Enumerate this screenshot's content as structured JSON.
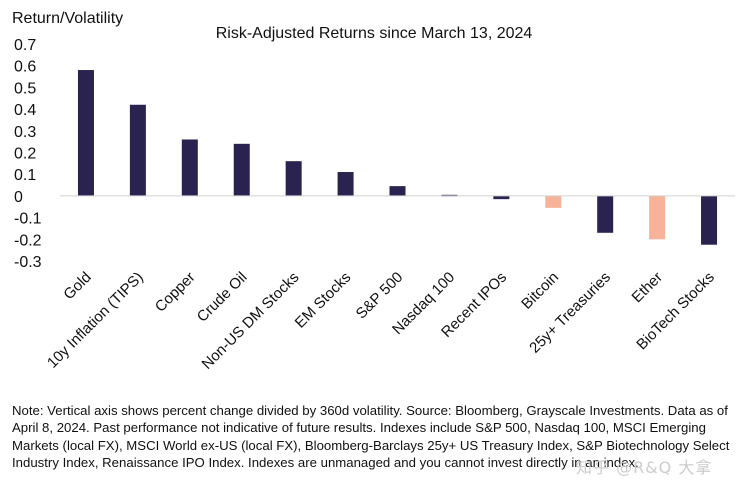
{
  "chart_data": {
    "type": "bar",
    "title": "Risk-Adjusted Returns since March 13, 2024",
    "ylabel": "Return/Volatility",
    "xlabel": "",
    "ylim": [
      -0.3,
      0.7
    ],
    "yticks": [
      0.7,
      0.6,
      0.5,
      0.4,
      0.3,
      0.2,
      0.1,
      0,
      -0.1,
      -0.2,
      -0.3
    ],
    "ytick_labels": [
      "0.7",
      "0.6",
      "0.5",
      "0.4",
      "0.3",
      "0.2",
      "0.1",
      "0",
      "-0.1",
      "-0.2",
      "-0.3"
    ],
    "grid": false,
    "legend": "none",
    "categories": [
      "Gold",
      "10y Inflation (TIPS)",
      "Copper",
      "Crude Oil",
      "Non-US DM Stocks",
      "EM Stocks",
      "S&P 500",
      "Nasdaq 100",
      "Recent IPOs",
      "Bitcoin",
      "25y+ Treasuries",
      "Ether",
      "BioTech Stocks"
    ],
    "values": [
      0.58,
      0.42,
      0.26,
      0.24,
      0.16,
      0.11,
      0.045,
      0.005,
      -0.015,
      -0.055,
      -0.17,
      -0.2,
      -0.225
    ],
    "highlight": [
      false,
      false,
      false,
      false,
      false,
      false,
      false,
      false,
      false,
      true,
      false,
      true,
      false
    ],
    "colors": {
      "default": "#2a2350",
      "highlight": "#f7b39a"
    }
  },
  "note": "Note: Vertical axis shows percent change divided by 360d volatility. Source: Bloomberg, Grayscale Investments. Data as of April 8, 2024. Past performance not indicative of future results. Indexes include S&P 500, Nasdaq 100, MSCI Emerging Markets (local FX), MSCI World ex-US (local FX), Bloomberg-Barclays 25y+ US Treasury Index, S&P Biotechnology Select Industry Index, Renaissance IPO Index. Indexes are unmanaged and you cannot invest directly in an index.",
  "watermark": "知乎 @R&Q 大拿"
}
